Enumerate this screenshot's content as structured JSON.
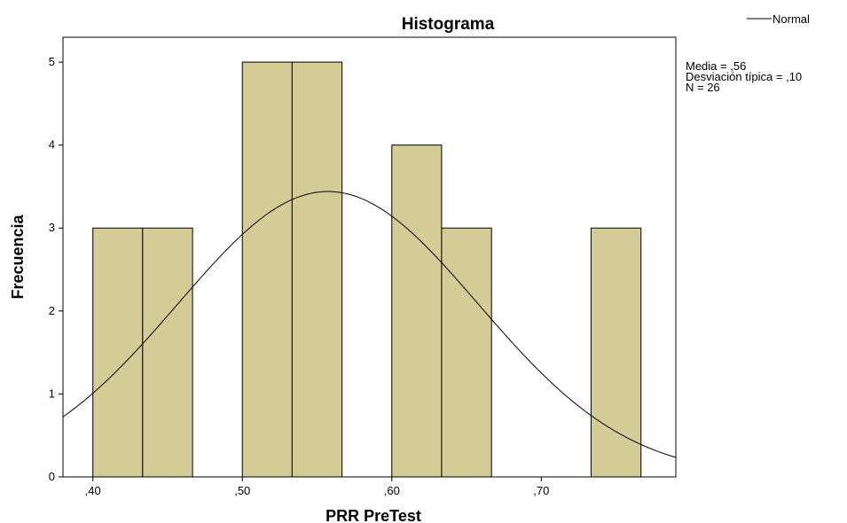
{
  "chart_data": {
    "type": "bar",
    "title": "Histograma",
    "xlabel": "PRR  PreTest",
    "ylabel": "Frecuencia",
    "xlim": [
      0.38,
      0.79
    ],
    "ylim": [
      0,
      5.3
    ],
    "bin_width": 0.0333,
    "bins": [
      {
        "start": 0.4,
        "end": 0.4333,
        "value": 3
      },
      {
        "start": 0.4333,
        "end": 0.4667,
        "value": 3
      },
      {
        "start": 0.5,
        "end": 0.5333,
        "value": 5
      },
      {
        "start": 0.5333,
        "end": 0.5667,
        "value": 5
      },
      {
        "start": 0.6,
        "end": 0.6333,
        "value": 4
      },
      {
        "start": 0.6333,
        "end": 0.6667,
        "value": 3
      },
      {
        "start": 0.7333,
        "end": 0.7667,
        "value": 3
      }
    ],
    "x_ticks": [
      {
        "value": 0.4,
        "label": ",40"
      },
      {
        "value": 0.5,
        "label": ",50"
      },
      {
        "value": 0.6,
        "label": ",60"
      },
      {
        "value": 0.7,
        "label": ",70"
      }
    ],
    "y_ticks": [
      {
        "value": 0,
        "label": "0"
      },
      {
        "value": 1,
        "label": "1"
      },
      {
        "value": 2,
        "label": "2"
      },
      {
        "value": 3,
        "label": "3"
      },
      {
        "value": 4,
        "label": "4"
      },
      {
        "value": 5,
        "label": "5"
      }
    ],
    "normal_curve": {
      "mean": 0.5573,
      "sd": 0.1004,
      "n": 26
    },
    "legend": {
      "label": "Normal",
      "position": "top-right"
    },
    "stats": [
      "Media = ,56",
      "Desviación típica = ,10",
      "N = 26"
    ],
    "colors": {
      "bar_fill": "#d3cc97",
      "bar_stroke": "#000000",
      "plot_bg": "#ffffff",
      "curve": "#000000"
    }
  }
}
